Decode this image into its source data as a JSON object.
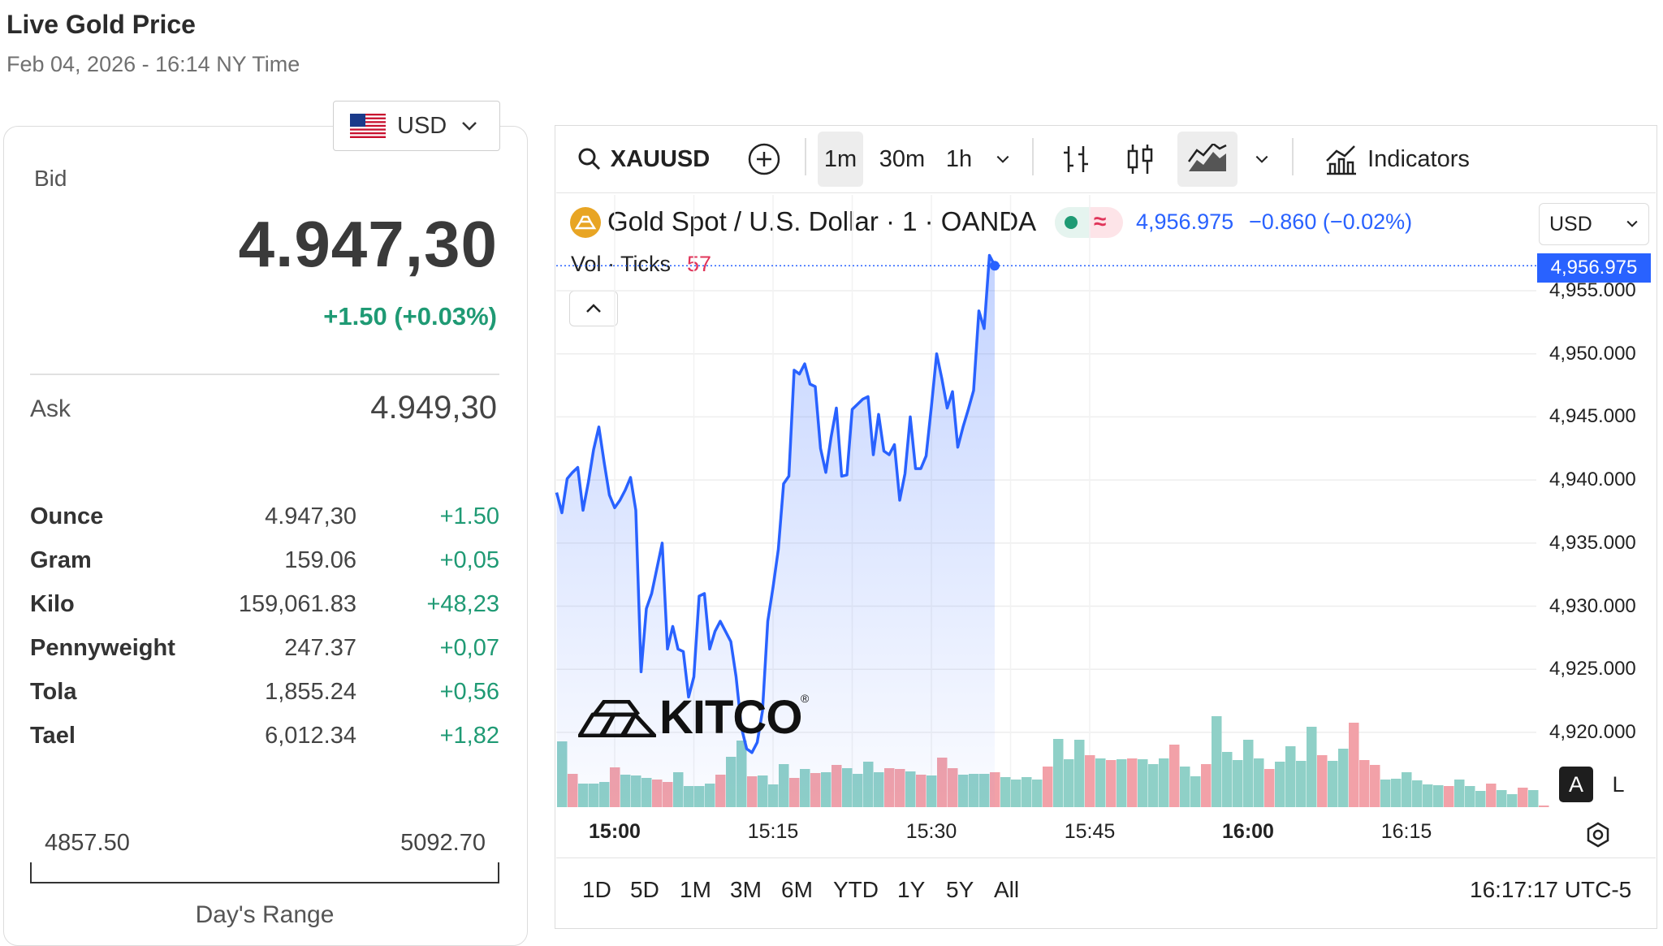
{
  "header": {
    "title": "Live Gold Price",
    "subtitle": "Feb 04, 2026 - 16:14 NY Time"
  },
  "currency_selector": {
    "value": "USD",
    "flag_icon": "us-flag-icon"
  },
  "quote": {
    "bid_label": "Bid",
    "bid": "4.947,30",
    "bid_change": "+1.50 (+0.03%)",
    "ask_label": "Ask",
    "ask": "4.949,30",
    "positive_color": "#1f9a74"
  },
  "units": [
    {
      "name": "Ounce",
      "price": "4.947,30",
      "change": "+1.50"
    },
    {
      "name": "Gram",
      "price": "159.06",
      "change": "+0,05"
    },
    {
      "name": "Kilo",
      "price": "159,061.83",
      "change": "+48,23"
    },
    {
      "name": "Pennyweight",
      "price": "247.37",
      "change": "+0,07"
    },
    {
      "name": "Tola",
      "price": "1,855.24",
      "change": "+0,56"
    },
    {
      "name": "Tael",
      "price": "6,012.34",
      "change": "+1,82"
    }
  ],
  "day_range": {
    "low": "4857.50",
    "high": "5092.70",
    "label": "Day's Range"
  },
  "chart_widget": {
    "symbol": "XAUUSD",
    "intervals": [
      "1m",
      "30m",
      "1h"
    ],
    "active_interval": "1m",
    "indicators_label": "Indicators",
    "legend": {
      "title": "Gold Spot / U.S. Dollar · 1 · OANDA",
      "price": "4,956.975",
      "change": "−0.860 (−0.02%)",
      "vol_label": "Vol · Ticks",
      "vol_value": "57"
    },
    "price_currency": "USD",
    "last_price_flag": "4,956.975",
    "auto_label": "A",
    "log_label": "L",
    "ranges": [
      "1D",
      "5D",
      "1M",
      "3M",
      "6M",
      "YTD",
      "1Y",
      "5Y",
      "All"
    ],
    "clock": "16:17:17 UTC-5",
    "watermark": "KITCO",
    "line_color": "#2962ff",
    "vol_up_color": "#8fd0c7",
    "vol_down_color": "#f2a1a8"
  },
  "chart_data": {
    "type": "line",
    "title": "Gold Spot / U.S. Dollar · 1 · OANDA",
    "xlabel": "",
    "ylabel": "",
    "x_ticks": [
      "15:00",
      "15:15",
      "15:30",
      "15:45",
      "16:00",
      "16:15"
    ],
    "x_ticks_bold": [
      "15:00",
      "16:00"
    ],
    "y_ticks": [
      "4,955.000",
      "4,950.000",
      "4,945.000",
      "4,940.000",
      "4,935.000",
      "4,930.000",
      "4,925.000",
      "4,920.000"
    ],
    "ylim": [
      4916.5,
      4961.5
    ],
    "x_minutes_range": [
      -5.5,
      19
    ],
    "series": [
      {
        "type": "line",
        "points": [
          [
            -5.5,
            4939.0
          ],
          [
            -5.0,
            4937.4
          ],
          [
            -4.5,
            4940.1
          ],
          [
            -4.0,
            4940.6
          ],
          [
            -3.5,
            4941.0
          ],
          [
            -3.0,
            4937.6
          ],
          [
            -2.5,
            4939.8
          ],
          [
            -2.0,
            4942.4
          ],
          [
            -1.5,
            4944.2
          ],
          [
            -1.0,
            4941.4
          ],
          [
            -0.5,
            4938.8
          ],
          [
            0.0,
            4937.8
          ],
          [
            0.5,
            4938.4
          ],
          [
            1.0,
            4939.2
          ],
          [
            1.5,
            4940.2
          ],
          [
            2.0,
            4937.6
          ],
          [
            2.5,
            4924.8
          ],
          [
            3.0,
            4929.8
          ],
          [
            3.5,
            4931.0
          ],
          [
            4.0,
            4933.0
          ],
          [
            4.5,
            4935.0
          ],
          [
            5.0,
            4926.6
          ],
          [
            5.5,
            4928.4
          ],
          [
            6.0,
            4926.6
          ],
          [
            6.5,
            4926.4
          ],
          [
            7.0,
            4922.8
          ],
          [
            7.5,
            4924.4
          ],
          [
            8.0,
            4930.8
          ],
          [
            8.5,
            4931.0
          ],
          [
            9.0,
            4926.6
          ],
          [
            9.5,
            4928.0
          ],
          [
            10.0,
            4928.8
          ],
          [
            10.5,
            4928.0
          ],
          [
            11.0,
            4927.2
          ],
          [
            11.5,
            4924.4
          ],
          [
            12.0,
            4920.4
          ],
          [
            12.5,
            4918.7
          ],
          [
            13.0,
            4918.4
          ],
          [
            13.5,
            4919.2
          ],
          [
            14.0,
            4921.7
          ],
          [
            14.5,
            4928.8
          ],
          [
            15.0,
            4931.5
          ],
          [
            15.5,
            4934.5
          ],
          [
            16.0,
            4939.7
          ],
          [
            16.5,
            4940.3
          ],
          [
            17.0,
            4948.7
          ],
          [
            17.5,
            4948.4
          ],
          [
            18.0,
            4949.2
          ],
          [
            18.5,
            4947.6
          ],
          [
            19.0,
            4947.4
          ],
          [
            19.5,
            4942.5
          ],
          [
            20.0,
            4940.6
          ],
          [
            20.5,
            4943.4
          ],
          [
            21.0,
            4945.7
          ],
          [
            21.5,
            4940.3
          ],
          [
            22.0,
            4940.4
          ],
          [
            22.5,
            4945.6
          ],
          [
            23.0,
            4946.0
          ],
          [
            23.5,
            4946.4
          ],
          [
            24.0,
            4946.6
          ],
          [
            24.5,
            4942.0
          ],
          [
            25.0,
            4945.2
          ],
          [
            25.5,
            4942.3
          ],
          [
            26.0,
            4942.0
          ],
          [
            26.5,
            4942.8
          ],
          [
            27.0,
            4938.4
          ],
          [
            27.5,
            4940.5
          ],
          [
            28.0,
            4945.0
          ],
          [
            28.5,
            4940.9
          ],
          [
            29.0,
            4940.9
          ],
          [
            29.5,
            4941.9
          ],
          [
            30.0,
            4945.8
          ],
          [
            30.5,
            4950.0
          ],
          [
            31.0,
            4948.0
          ],
          [
            31.5,
            4945.7
          ],
          [
            32.0,
            4947.0
          ],
          [
            32.5,
            4942.6
          ],
          [
            33.0,
            4944.2
          ],
          [
            33.5,
            4945.6
          ],
          [
            34.0,
            4947.1
          ],
          [
            34.5,
            4953.4
          ],
          [
            35.0,
            4952.0
          ],
          [
            35.5,
            4957.8
          ],
          [
            36.0,
            4957.0
          ]
        ]
      },
      {
        "type": "bar",
        "name": "Vol · Ticks",
        "values": [
          [
            81,
            "up"
          ],
          [
            41,
            "down"
          ],
          [
            29,
            "up"
          ],
          [
            29,
            "up"
          ],
          [
            31,
            "up"
          ],
          [
            49,
            "down"
          ],
          [
            40,
            "up"
          ],
          [
            39,
            "up"
          ],
          [
            36,
            "up"
          ],
          [
            34,
            "down"
          ],
          [
            31,
            "down"
          ],
          [
            43,
            "up"
          ],
          [
            26,
            "up"
          ],
          [
            26,
            "up"
          ],
          [
            29,
            "up"
          ],
          [
            40,
            "down"
          ],
          [
            62,
            "up"
          ],
          [
            82,
            "up"
          ],
          [
            38,
            "down"
          ],
          [
            39,
            "up"
          ],
          [
            28,
            "up"
          ],
          [
            53,
            "up"
          ],
          [
            36,
            "down"
          ],
          [
            47,
            "up"
          ],
          [
            42,
            "down"
          ],
          [
            43,
            "up"
          ],
          [
            52,
            "down"
          ],
          [
            48,
            "up"
          ],
          [
            41,
            "up"
          ],
          [
            56,
            "up"
          ],
          [
            43,
            "up"
          ],
          [
            48,
            "down"
          ],
          [
            47,
            "down"
          ],
          [
            44,
            "up"
          ],
          [
            40,
            "down"
          ],
          [
            39,
            "up"
          ],
          [
            61,
            "down"
          ],
          [
            48,
            "down"
          ],
          [
            40,
            "up"
          ],
          [
            41,
            "up"
          ],
          [
            41,
            "up"
          ],
          [
            43,
            "down"
          ],
          [
            37,
            "up"
          ],
          [
            34,
            "up"
          ],
          [
            37,
            "up"
          ],
          [
            34,
            "up"
          ],
          [
            50,
            "down"
          ],
          [
            84,
            "up"
          ],
          [
            59,
            "up"
          ],
          [
            83,
            "up"
          ],
          [
            64,
            "down"
          ],
          [
            60,
            "up"
          ],
          [
            58,
            "down"
          ],
          [
            59,
            "up"
          ],
          [
            60,
            "down"
          ],
          [
            59,
            "up"
          ],
          [
            53,
            "up"
          ],
          [
            60,
            "up"
          ],
          [
            77,
            "down"
          ],
          [
            50,
            "up"
          ],
          [
            38,
            "up"
          ],
          [
            53,
            "down"
          ],
          [
            112,
            "up"
          ],
          [
            68,
            "up"
          ],
          [
            58,
            "up"
          ],
          [
            83,
            "up"
          ],
          [
            60,
            "up"
          ],
          [
            47,
            "down"
          ],
          [
            56,
            "up"
          ],
          [
            75,
            "up"
          ],
          [
            57,
            "up"
          ],
          [
            99,
            "up"
          ],
          [
            64,
            "down"
          ],
          [
            57,
            "up"
          ],
          [
            72,
            "up"
          ],
          [
            104,
            "down"
          ],
          [
            58,
            "down"
          ],
          [
            52,
            "down"
          ],
          [
            34,
            "up"
          ],
          [
            35,
            "up"
          ],
          [
            43,
            "up"
          ],
          [
            33,
            "up"
          ],
          [
            28,
            "up"
          ],
          [
            27,
            "up"
          ],
          [
            26,
            "down"
          ],
          [
            34,
            "up"
          ],
          [
            26,
            "up"
          ],
          [
            20,
            "up"
          ],
          [
            29,
            "down"
          ],
          [
            21,
            "up"
          ],
          [
            16,
            "up"
          ],
          [
            24,
            "down"
          ],
          [
            21,
            "up"
          ],
          [
            2,
            "down"
          ]
        ]
      }
    ],
    "last_price": 4956.975,
    "grid": true,
    "legend": "top-left"
  }
}
